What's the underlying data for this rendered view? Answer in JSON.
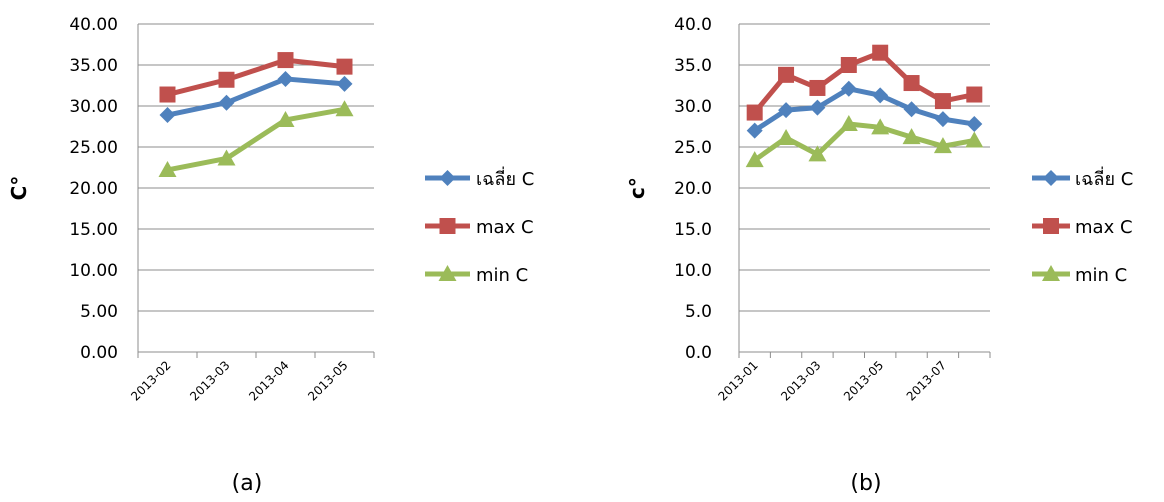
{
  "chart_data": [
    {
      "type": "line",
      "ylabel": "C°",
      "ylim": [
        0,
        40
      ],
      "yticks": [
        "0.00",
        "5.00",
        "10.00",
        "15.00",
        "20.00",
        "25.00",
        "30.00",
        "35.00",
        "40.00"
      ],
      "categories": [
        "2013-02",
        "2013-03",
        "2013-04",
        "2013-05"
      ],
      "series": [
        {
          "name": "เฉลี่ย C",
          "color": "#4f81bd",
          "marker": "diamond",
          "values": [
            28.9,
            30.4,
            33.3,
            32.7
          ]
        },
        {
          "name": "max C",
          "color": "#c0504d",
          "marker": "square",
          "values": [
            31.4,
            33.2,
            35.6,
            34.8
          ]
        },
        {
          "name": "min C",
          "color": "#9bbb59",
          "marker": "triangle",
          "values": [
            22.2,
            23.6,
            28.3,
            29.6
          ]
        }
      ],
      "grid": true,
      "legend": "right",
      "caption": "(a)"
    },
    {
      "type": "line",
      "ylabel": "c°",
      "ylim": [
        0,
        40
      ],
      "yticks": [
        "0.0",
        "5.0",
        "10.0",
        "15.0",
        "20.0",
        "25.0",
        "30.0",
        "35.0",
        "40.0"
      ],
      "categories": [
        "2013-01",
        "2013-02",
        "2013-03",
        "2013-04",
        "2013-05",
        "2013-06",
        "2013-07",
        "2013-08"
      ],
      "xticklabels": [
        "2013-01",
        "",
        "2013-03",
        "",
        "2013-05",
        "",
        "2013-07",
        ""
      ],
      "series": [
        {
          "name": "เฉลี่ย C",
          "color": "#4f81bd",
          "marker": "diamond",
          "values": [
            27.0,
            29.5,
            29.8,
            32.1,
            31.3,
            29.6,
            28.4,
            27.8
          ]
        },
        {
          "name": "max C",
          "color": "#c0504d",
          "marker": "square",
          "values": [
            29.2,
            33.8,
            32.2,
            35.0,
            36.5,
            32.8,
            30.6,
            31.4
          ]
        },
        {
          "name": "min C",
          "color": "#9bbb59",
          "marker": "triangle",
          "values": [
            23.4,
            26.1,
            24.1,
            27.8,
            27.4,
            26.2,
            25.1,
            25.8
          ]
        }
      ],
      "grid": true,
      "legend": "right",
      "caption": "(b)"
    }
  ]
}
